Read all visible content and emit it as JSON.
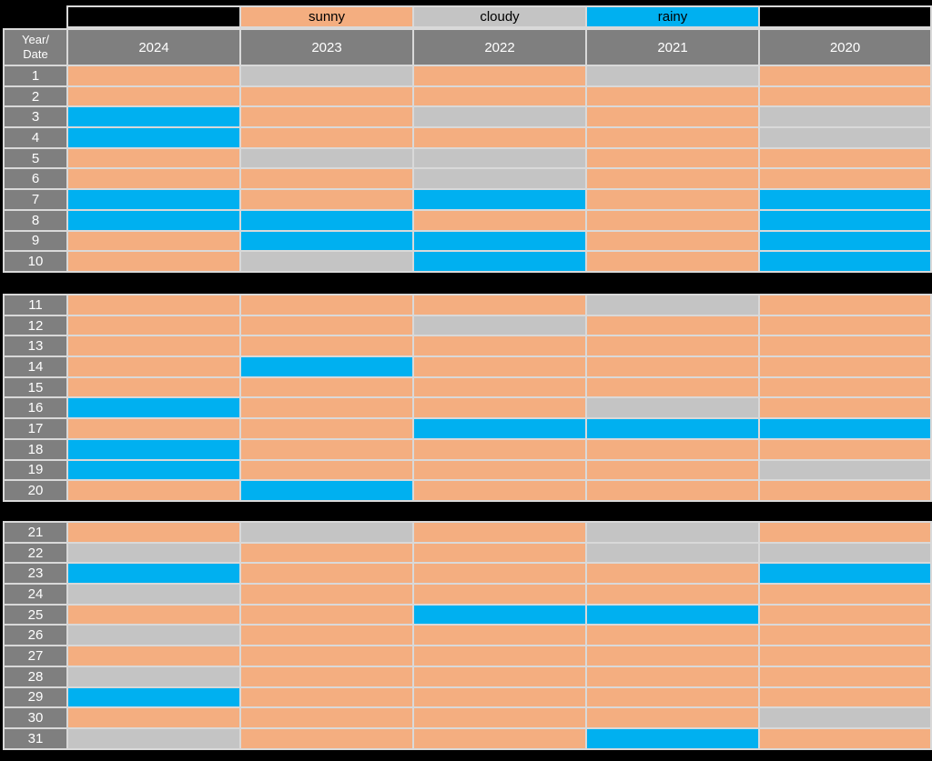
{
  "colors": {
    "sunny": "#F4AE80",
    "cloudy": "#C4C4C4",
    "rainy": "#00B0F0",
    "header_bg": "#7F7F7F",
    "header_text": "#FFFFFF",
    "legend_text": "#000000",
    "border": "#D9D9D9",
    "background": "#000000"
  },
  "legend": {
    "cells": [
      {
        "label": "",
        "style": "blank"
      },
      {
        "label": "sunny",
        "style": "sunny"
      },
      {
        "label": "cloudy",
        "style": "cloudy"
      },
      {
        "label": "rainy",
        "style": "rainy"
      },
      {
        "label": "",
        "style": "blank"
      }
    ]
  },
  "header": {
    "corner": "Year/\nDate",
    "years": [
      "2024",
      "2023",
      "2022",
      "2021",
      "2020"
    ]
  },
  "blocks": [
    {
      "from": 1,
      "to": 10
    },
    {
      "from": 11,
      "to": 20
    },
    {
      "from": 21,
      "to": 31
    }
  ],
  "chart_data": {
    "type": "table",
    "columns": [
      "2024",
      "2023",
      "2022",
      "2021",
      "2020"
    ],
    "row_label": "Date",
    "legend_labels": [
      "sunny",
      "cloudy",
      "rainy"
    ],
    "rows": [
      {
        "date": "1",
        "values": [
          "sunny",
          "cloudy",
          "sunny",
          "cloudy",
          "sunny"
        ]
      },
      {
        "date": "2",
        "values": [
          "sunny",
          "sunny",
          "sunny",
          "sunny",
          "sunny"
        ]
      },
      {
        "date": "3",
        "values": [
          "rainy",
          "sunny",
          "cloudy",
          "sunny",
          "cloudy"
        ]
      },
      {
        "date": "4",
        "values": [
          "rainy",
          "sunny",
          "sunny",
          "sunny",
          "cloudy"
        ]
      },
      {
        "date": "5",
        "values": [
          "sunny",
          "cloudy",
          "cloudy",
          "sunny",
          "sunny"
        ]
      },
      {
        "date": "6",
        "values": [
          "sunny",
          "sunny",
          "cloudy",
          "sunny",
          "sunny"
        ]
      },
      {
        "date": "7",
        "values": [
          "rainy",
          "sunny",
          "rainy",
          "sunny",
          "rainy"
        ]
      },
      {
        "date": "8",
        "values": [
          "rainy",
          "rainy",
          "sunny",
          "sunny",
          "rainy"
        ]
      },
      {
        "date": "9",
        "values": [
          "sunny",
          "rainy",
          "rainy",
          "sunny",
          "rainy"
        ]
      },
      {
        "date": "10",
        "values": [
          "sunny",
          "cloudy",
          "rainy",
          "sunny",
          "rainy"
        ]
      },
      {
        "date": "11",
        "values": [
          "sunny",
          "sunny",
          "sunny",
          "cloudy",
          "sunny"
        ]
      },
      {
        "date": "12",
        "values": [
          "sunny",
          "sunny",
          "cloudy",
          "sunny",
          "sunny"
        ]
      },
      {
        "date": "13",
        "values": [
          "sunny",
          "sunny",
          "sunny",
          "sunny",
          "sunny"
        ]
      },
      {
        "date": "14",
        "values": [
          "sunny",
          "rainy",
          "sunny",
          "sunny",
          "sunny"
        ]
      },
      {
        "date": "15",
        "values": [
          "sunny",
          "sunny",
          "sunny",
          "sunny",
          "sunny"
        ]
      },
      {
        "date": "16",
        "values": [
          "rainy",
          "sunny",
          "sunny",
          "cloudy",
          "sunny"
        ]
      },
      {
        "date": "17",
        "values": [
          "sunny",
          "sunny",
          "rainy",
          "rainy",
          "rainy"
        ]
      },
      {
        "date": "18",
        "values": [
          "rainy",
          "sunny",
          "sunny",
          "sunny",
          "sunny"
        ]
      },
      {
        "date": "19",
        "values": [
          "rainy",
          "sunny",
          "sunny",
          "sunny",
          "cloudy"
        ]
      },
      {
        "date": "20",
        "values": [
          "sunny",
          "rainy",
          "sunny",
          "sunny",
          "sunny"
        ]
      },
      {
        "date": "21",
        "values": [
          "sunny",
          "cloudy",
          "sunny",
          "cloudy",
          "sunny"
        ]
      },
      {
        "date": "22",
        "values": [
          "cloudy",
          "sunny",
          "sunny",
          "cloudy",
          "cloudy"
        ]
      },
      {
        "date": "23",
        "values": [
          "rainy",
          "sunny",
          "sunny",
          "sunny",
          "rainy"
        ]
      },
      {
        "date": "24",
        "values": [
          "cloudy",
          "sunny",
          "sunny",
          "sunny",
          "sunny"
        ]
      },
      {
        "date": "25",
        "values": [
          "sunny",
          "sunny",
          "rainy",
          "rainy",
          "sunny"
        ]
      },
      {
        "date": "26",
        "values": [
          "cloudy",
          "sunny",
          "sunny",
          "sunny",
          "sunny"
        ]
      },
      {
        "date": "27",
        "values": [
          "sunny",
          "sunny",
          "sunny",
          "sunny",
          "sunny"
        ]
      },
      {
        "date": "28",
        "values": [
          "cloudy",
          "sunny",
          "sunny",
          "sunny",
          "sunny"
        ]
      },
      {
        "date": "29",
        "values": [
          "rainy",
          "sunny",
          "sunny",
          "sunny",
          "sunny"
        ]
      },
      {
        "date": "30",
        "values": [
          "sunny",
          "sunny",
          "sunny",
          "sunny",
          "cloudy"
        ]
      },
      {
        "date": "31",
        "values": [
          "cloudy",
          "sunny",
          "sunny",
          "rainy",
          "sunny"
        ]
      }
    ]
  }
}
